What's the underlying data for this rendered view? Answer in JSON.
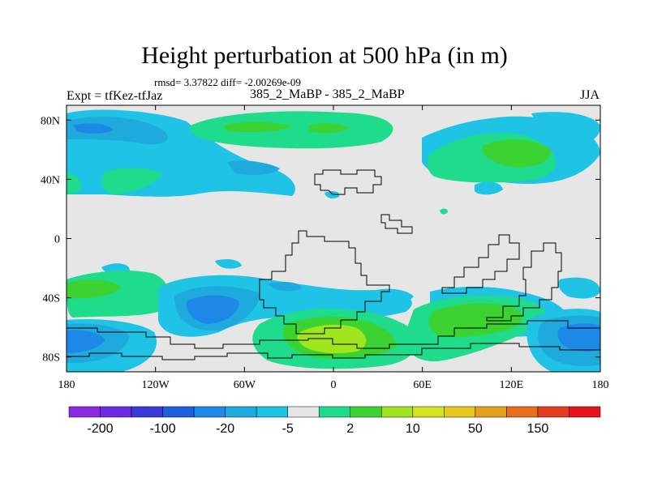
{
  "title": "Height perturbation at 500 hPa (in m)",
  "stats": "rmsd= 3.37822 diff= -2.00269e-09",
  "left_label": "Expt = tfKez-tfJaz",
  "center_label": "385_2_MaBP - 385_2_MaBP",
  "right_label": "JJA",
  "axes": {
    "x_ticks": [
      {
        "value": -180,
        "label": "180"
      },
      {
        "value": -120,
        "label": "120W"
      },
      {
        "value": -60,
        "label": "60W"
      },
      {
        "value": 0,
        "label": "0"
      },
      {
        "value": 60,
        "label": "60E"
      },
      {
        "value": 120,
        "label": "120E"
      },
      {
        "value": 180,
        "label": "180"
      }
    ],
    "y_ticks": [
      {
        "value": 80,
        "label": "80N"
      },
      {
        "value": 40,
        "label": "40N"
      },
      {
        "value": 0,
        "label": "0"
      },
      {
        "value": -40,
        "label": "40S"
      },
      {
        "value": -80,
        "label": "80S"
      }
    ]
  },
  "colorbar": {
    "colors": [
      "#8a2be2",
      "#6a2be2",
      "#3a3ad8",
      "#1e5fe0",
      "#1e88e8",
      "#1eaadd",
      "#1ec3e6",
      "#e6e6e6",
      "#1edc8c",
      "#3cd232",
      "#a0e61e",
      "#d2e61e",
      "#e6c81e",
      "#e6a01e",
      "#e66e1e",
      "#e63c1e",
      "#e6141e"
    ],
    "labels": [
      "-200",
      "-100",
      "-20",
      "-5",
      "2",
      "10",
      "50",
      "150"
    ]
  },
  "colors": {
    "neutral_fill": "#e6e6e6",
    "light_blue": "#1ec3e6",
    "mid_blue": "#1eaadd",
    "blue": "#1e88e8",
    "teal_green": "#1edc8c",
    "green": "#3cd232",
    "yellow_green": "#a0e61e"
  }
}
